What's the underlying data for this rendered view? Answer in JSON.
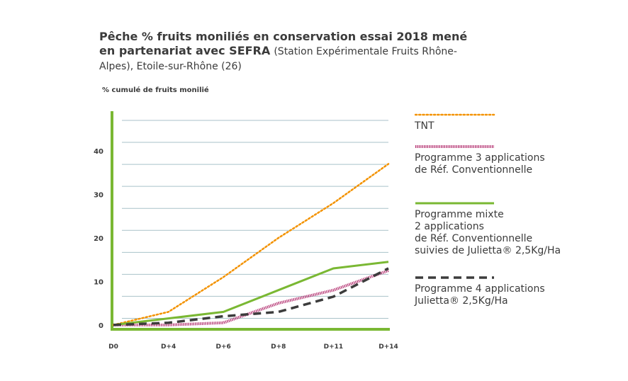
{
  "title_bold": "Pêche % fruits moniliés en conservation essai 2018 mené en partenariat avec SEFRA",
  "title_light": "(Station Expérimentale Fruits Rhône-Alpes), Etoile-sur-Rhône (26)",
  "chart_data": {
    "type": "line",
    "ylabel": "% cumulé de fruits monilié",
    "categories": [
      "D0",
      "D+4",
      "D+6",
      "D+8",
      "D+11",
      "D+14"
    ],
    "yticks": [
      0,
      10,
      20,
      30,
      40
    ],
    "ylim": [
      -1,
      47
    ],
    "grid": true,
    "legend": "right",
    "series": [
      {
        "name": "TNT",
        "color": "#f39200",
        "style": "dotted",
        "values": [
          0,
          3,
          11,
          20,
          28,
          37
        ]
      },
      {
        "name": "Programme 3 applications\nde Réf. Conventionnelle",
        "color": "#b0286a",
        "style": "hatched",
        "values": [
          0,
          0,
          0.5,
          5,
          8,
          12.5
        ]
      },
      {
        "name": "Programme mixte\n2 applications\nde Réf. Conventionnelle\nsuivies de Julietta® 2,5Kg/Ha",
        "color": "#7ab833",
        "style": "solid",
        "values": [
          0,
          1.5,
          3,
          8,
          13,
          14.5
        ]
      },
      {
        "name": "Programme 4 applications\nJulietta® 2,5Kg/Ha",
        "color": "#3c3c3c",
        "style": "dashed",
        "values": [
          0,
          0.5,
          2,
          3,
          6.5,
          13
        ]
      }
    ]
  }
}
